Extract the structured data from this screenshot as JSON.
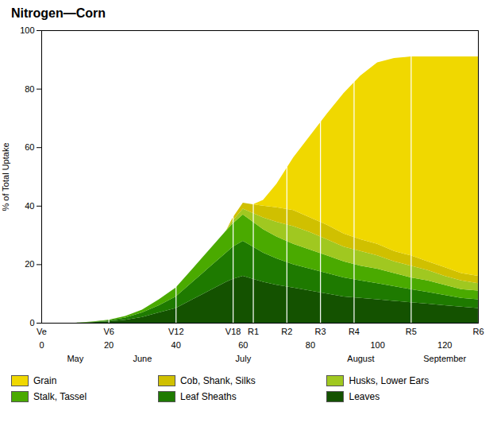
{
  "chart_data": {
    "type": "area",
    "stacked": true,
    "title": "Nitrogen—Corn",
    "ylabel": "% of Total Uptake",
    "x": [
      0,
      5,
      10,
      15,
      20,
      25,
      30,
      35,
      40,
      45,
      50,
      55,
      57,
      60,
      63,
      66,
      70,
      75,
      80,
      85,
      90,
      95,
      100,
      105,
      110,
      115,
      120,
      125,
      130
    ],
    "series": [
      {
        "name": "Leaves",
        "color": "#145200",
        "values": [
          0,
          0,
          0,
          0.2,
          0.5,
          1.0,
          2.0,
          3.5,
          5.0,
          8.0,
          11,
          14,
          15,
          16,
          15,
          14,
          13,
          12,
          11,
          10,
          9,
          8.5,
          8,
          7.5,
          7,
          6.5,
          6,
          5.5,
          5
        ]
      },
      {
        "name": "Leaf Sheaths",
        "color": "#1e7a00",
        "values": [
          0,
          0,
          0,
          0.1,
          0.3,
          0.8,
          1.5,
          2.5,
          4.0,
          6.0,
          8,
          10,
          11,
          12,
          11,
          10,
          9,
          8,
          7.5,
          7,
          6.5,
          6,
          5.5,
          5,
          4.5,
          4,
          3.5,
          3,
          3
        ]
      },
      {
        "name": "Stalk, Tassel",
        "color": "#4aaa00",
        "values": [
          0,
          0,
          0,
          0.1,
          0.2,
          0.5,
          1.0,
          2.0,
          3.0,
          4.5,
          6,
          7.5,
          8,
          9,
          8.5,
          8,
          7.5,
          7,
          6.5,
          6,
          5.5,
          5,
          5,
          4.5,
          4,
          4,
          3.5,
          3,
          3
        ]
      },
      {
        "name": "Husks, Lower Ears",
        "color": "#a0c820",
        "values": [
          0,
          0,
          0,
          0,
          0,
          0,
          0,
          0,
          0,
          0,
          0,
          0,
          1,
          2,
          3,
          4,
          5,
          6,
          6,
          5.5,
          5,
          5,
          4.5,
          4,
          4,
          3.5,
          3,
          3,
          2.5
        ]
      },
      {
        "name": "Cob, Shank, Silks",
        "color": "#d0c000",
        "values": [
          0,
          0,
          0,
          0,
          0,
          0,
          0,
          0,
          0,
          0,
          0,
          0,
          1,
          2,
          3,
          4,
          5,
          5.5,
          5,
          5,
          4.5,
          4,
          4,
          3.5,
          3.5,
          3,
          3,
          2.5,
          2.5
        ]
      },
      {
        "name": "Grain",
        "color": "#f0d800",
        "values": [
          0,
          0,
          0,
          0,
          0,
          0,
          0,
          0,
          0,
          0,
          0,
          0,
          0,
          0,
          0,
          2,
          8,
          18,
          28,
          38,
          48,
          56,
          62,
          66,
          68,
          70,
          72,
          74,
          75
        ]
      }
    ],
    "xlim": [
      0,
      130
    ],
    "xticks": [
      0,
      20,
      40,
      60,
      80,
      100,
      120
    ],
    "ylim": [
      0,
      100
    ],
    "yticks": [
      0,
      20,
      40,
      60,
      80,
      100
    ],
    "stage_ticks": [
      {
        "value": 0,
        "label": "Ve"
      },
      {
        "value": 20,
        "label": "V6"
      },
      {
        "value": 40,
        "label": "V12"
      },
      {
        "value": 57,
        "label": "V18"
      },
      {
        "value": 63,
        "label": "R1"
      },
      {
        "value": 73,
        "label": "R2"
      },
      {
        "value": 83,
        "label": "R3"
      },
      {
        "value": 93,
        "label": "R4"
      },
      {
        "value": 110,
        "label": "R5"
      },
      {
        "value": 130,
        "label": "R6"
      }
    ],
    "month_ticks": [
      {
        "value": 10,
        "label": "May"
      },
      {
        "value": 30,
        "label": "June"
      },
      {
        "value": 60,
        "label": "July"
      },
      {
        "value": 95,
        "label": "August"
      },
      {
        "value": 120,
        "label": "September"
      }
    ]
  }
}
